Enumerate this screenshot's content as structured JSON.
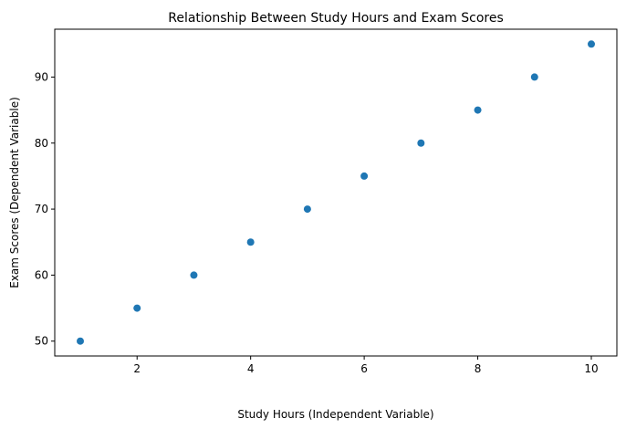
{
  "chart_data": {
    "type": "scatter",
    "title": "Relationship Between Study Hours and Exam Scores",
    "xlabel": "Study Hours (Independent Variable)",
    "ylabel": "Exam Scores (Dependent Variable)",
    "xlim": [
      0.55,
      10.45
    ],
    "ylim": [
      47.75,
      97.25
    ],
    "xticks": [
      2,
      4,
      6,
      8,
      10
    ],
    "yticks": [
      50,
      60,
      70,
      80,
      90
    ],
    "grid": false,
    "color": "#1f77b4",
    "series": [
      {
        "x": [
          1,
          2,
          3,
          4,
          5,
          6,
          7,
          8,
          9,
          10
        ],
        "y": [
          50,
          55,
          60,
          65,
          70,
          75,
          80,
          85,
          90,
          95
        ]
      }
    ]
  }
}
